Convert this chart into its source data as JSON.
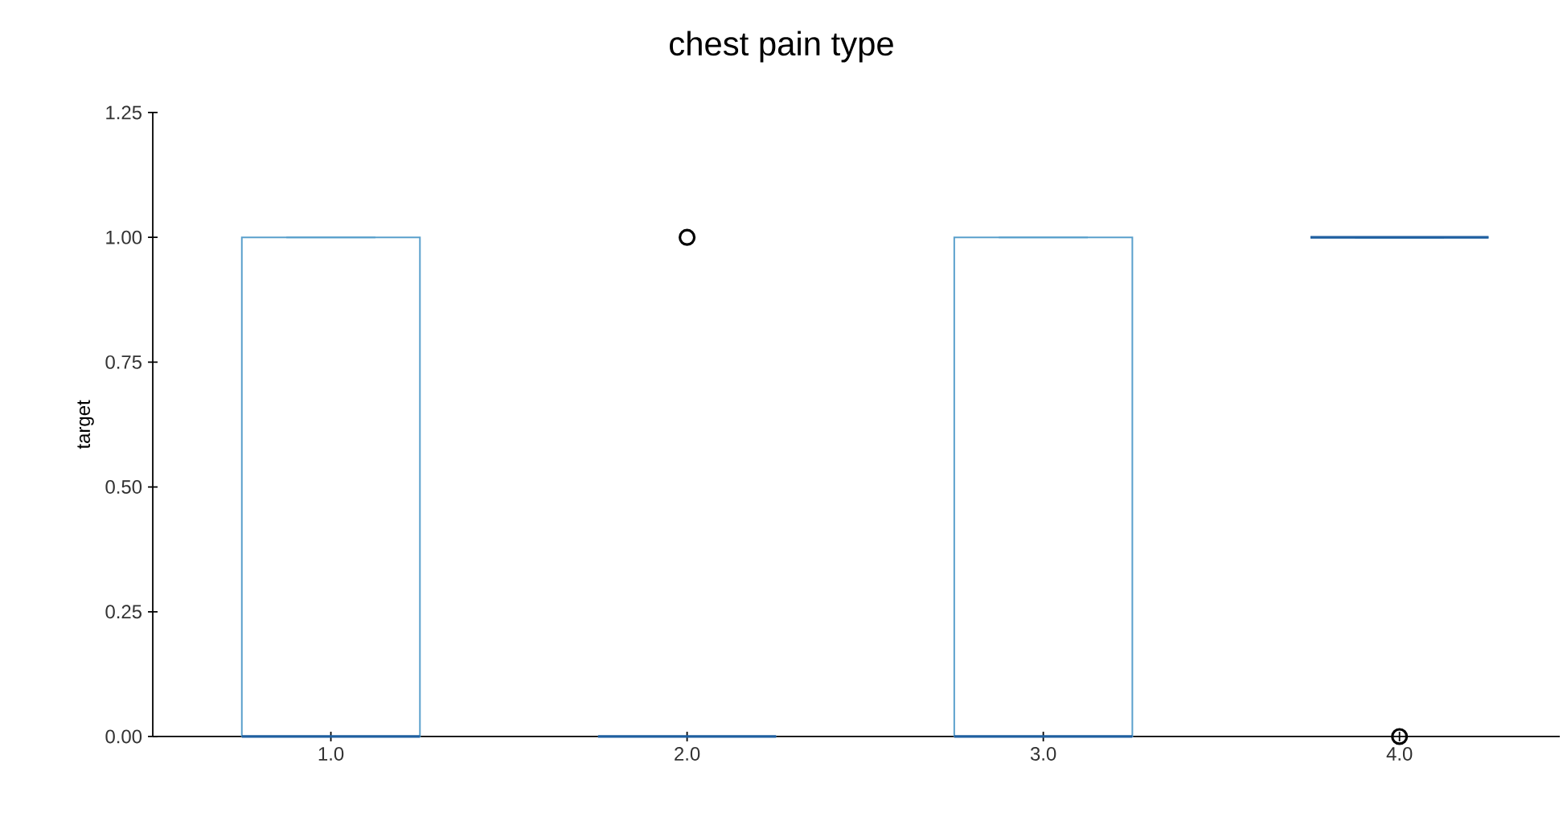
{
  "chart_data": {
    "type": "box",
    "title": "chest pain type",
    "ylabel": "target",
    "categories": [
      "1.0",
      "2.0",
      "3.0",
      "4.0"
    ],
    "boxes": [
      {
        "low": 0,
        "q1": 0,
        "median": 0,
        "q3": 1,
        "high": 1
      },
      {
        "low": 0,
        "q1": 0,
        "median": 0,
        "q3": 0,
        "high": 0,
        "outliers": [
          1
        ]
      },
      {
        "low": 0,
        "q1": 0,
        "median": 0,
        "q3": 1,
        "high": 1
      },
      {
        "low": 1,
        "q1": 1,
        "median": 1,
        "q3": 1,
        "high": 1,
        "outliers": [
          0
        ]
      }
    ],
    "color": "#5aa0cc",
    "ylim": [
      0,
      1.25
    ],
    "yticks": [
      {
        "value": 0,
        "label": "0.00"
      },
      0.25,
      {
        "value": 0.5,
        "label": "0.50"
      },
      0.75,
      {
        "value": 1,
        "label": "1.00"
      },
      1.25
    ],
    "grid": false
  }
}
